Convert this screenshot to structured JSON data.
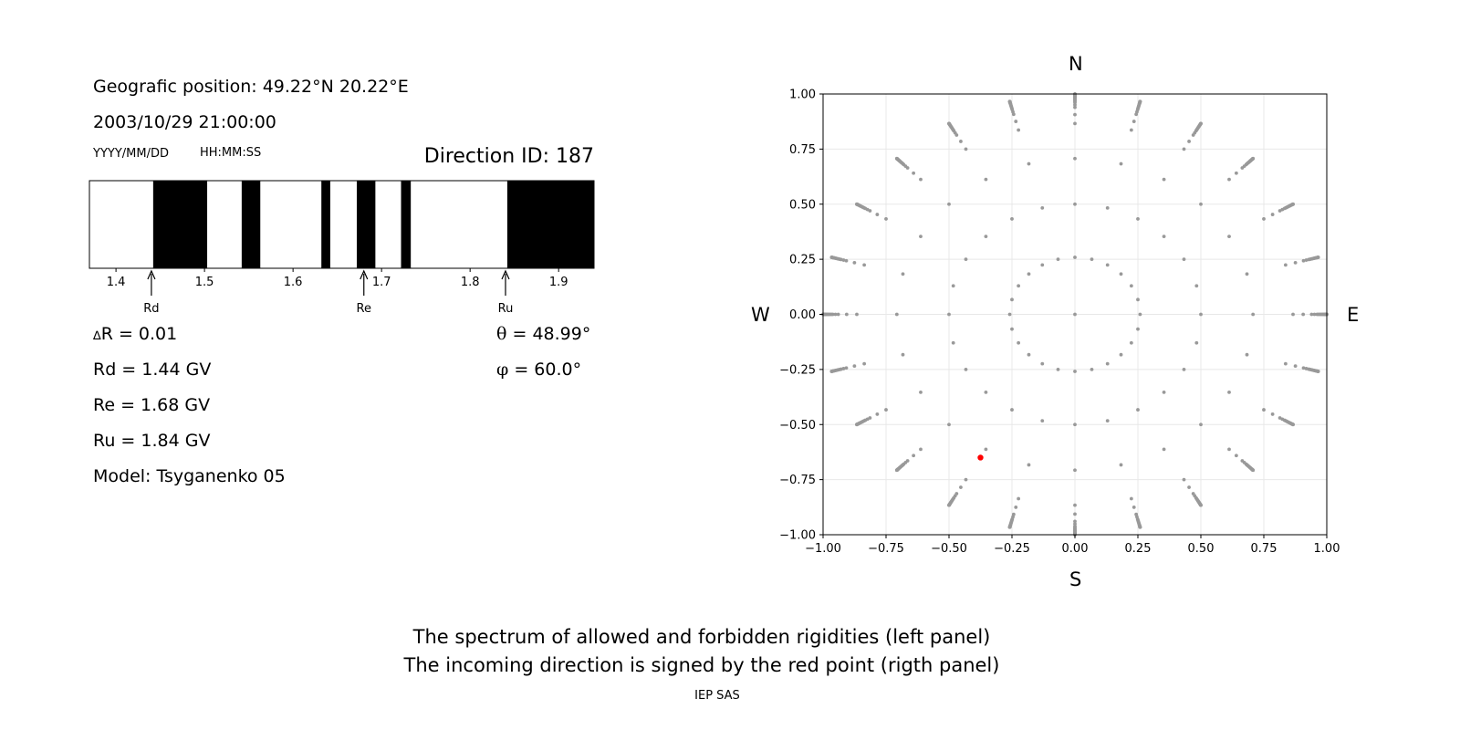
{
  "left_panel": {
    "geo_position": "Geografic position: 49.22°N 20.22°E",
    "datetime": "2003/10/29 21:00:00",
    "date_format": "YYYY/MM/DD",
    "time_format": "HH:MM:SS",
    "direction_id": "Direction ID: 187",
    "delta_r_symbol": "∆",
    "delta_r_text": "R = 0.01",
    "rd": "Rd = 1.44 GV",
    "re": "Re = 1.68 GV",
    "ru": "Ru = 1.84 GV",
    "model": "Model: Tsyganenko 05",
    "theta_symbol": "θ",
    "theta_text": " = 48.99°",
    "phi_symbol": "φ",
    "phi_text": " = 60.0°"
  },
  "compass": {
    "n": "N",
    "s": "S",
    "w": "W",
    "e": "E"
  },
  "caption": {
    "line1": "The spectrum of allowed and forbidden rigidities (left panel)",
    "line2": "The incoming direction is signed by the red point (rigth panel)",
    "credit": "IEP SAS"
  },
  "chart_data": [
    {
      "type": "spectrum",
      "title": "",
      "xlim": [
        1.37,
        1.94
      ],
      "ticks": [
        1.4,
        1.5,
        1.6,
        1.7,
        1.8,
        1.9
      ],
      "tick_labels": [
        "1.4",
        "1.5",
        "1.6",
        "1.7",
        "1.8",
        "1.9"
      ],
      "forbidden_intervals": [
        [
          1.442,
          1.503
        ],
        [
          1.542,
          1.563
        ],
        [
          1.632,
          1.642
        ],
        [
          1.672,
          1.693
        ],
        [
          1.722,
          1.733
        ],
        [
          1.842,
          1.94
        ]
      ],
      "markers": [
        {
          "name": "Rd",
          "value": 1.44
        },
        {
          "name": "Re",
          "value": 1.68
        },
        {
          "name": "Ru",
          "value": 1.84
        }
      ],
      "colors": {
        "forbidden": "#000000",
        "allowed": "#ffffff"
      }
    },
    {
      "type": "scatter",
      "title": "",
      "xlim": [
        -1.0,
        1.0
      ],
      "ylim": [
        -1.0,
        1.0
      ],
      "xticks": [
        -1.0,
        -0.75,
        -0.5,
        -0.25,
        0.0,
        0.25,
        0.5,
        0.75,
        1.0
      ],
      "yticks": [
        -1.0,
        -0.75,
        -0.5,
        -0.25,
        0.0,
        0.25,
        0.5,
        0.75,
        1.0
      ],
      "xtick_labels": [
        "−1.00",
        "−0.75",
        "−0.50",
        "−0.25",
        "0.00",
        "0.25",
        "0.50",
        "0.75",
        "1.00"
      ],
      "ytick_labels": [
        "−1.00",
        "−0.75",
        "−0.50",
        "−0.25",
        "0.00",
        "0.25",
        "0.50",
        "0.75",
        "1.00"
      ],
      "grid": true,
      "direction_grid": {
        "description": "Gray points: directions sampled every 15° in azimuth; radius = sin(zenith) for zenith 0–75° step 15°, and finer 75–90° steps",
        "azimuth_step_deg": 15,
        "zenith_deg": [
          0,
          15,
          30,
          45,
          60,
          65,
          70,
          72,
          74,
          75,
          76,
          77,
          78,
          79,
          80,
          81,
          82,
          83,
          84,
          85,
          86,
          87,
          88,
          89,
          90
        ],
        "color": "#999999"
      },
      "highlight_point": {
        "x": -0.375,
        "y": -0.65,
        "color": "#ff0000",
        "label": "incoming direction"
      }
    }
  ]
}
